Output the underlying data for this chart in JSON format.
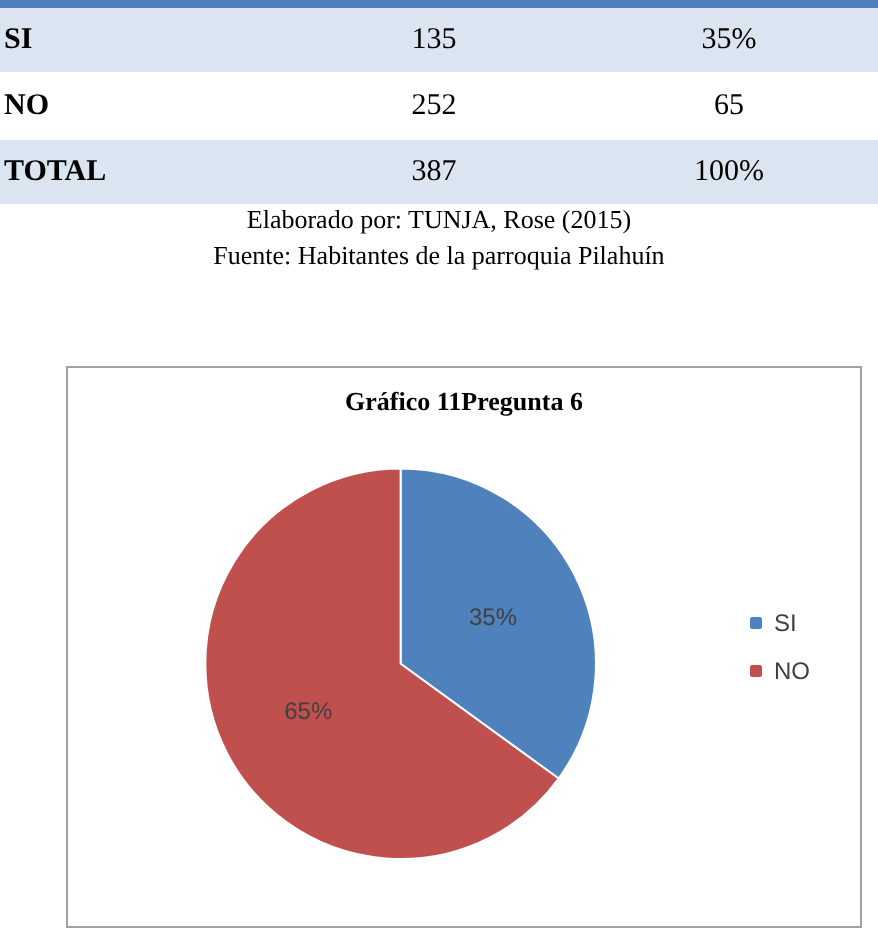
{
  "chart_data": {
    "type": "pie",
    "title": "Gráfico 11Pregunta 6",
    "categories": [
      "SI",
      "NO"
    ],
    "values": [
      35,
      65
    ],
    "colors": [
      "#4f81bd",
      "#c0504d"
    ],
    "value_labels": [
      "35%",
      "65%"
    ],
    "legend": "right",
    "annotations": [
      "SI",
      "135",
      "35%",
      "NO",
      "252",
      "65",
      "TOTAL",
      "387",
      "100%",
      "Elaborado por: TUNJA, Rose (2015)",
      "Fuente: Habitantes de la parroquia Pilahuín"
    ]
  }
}
